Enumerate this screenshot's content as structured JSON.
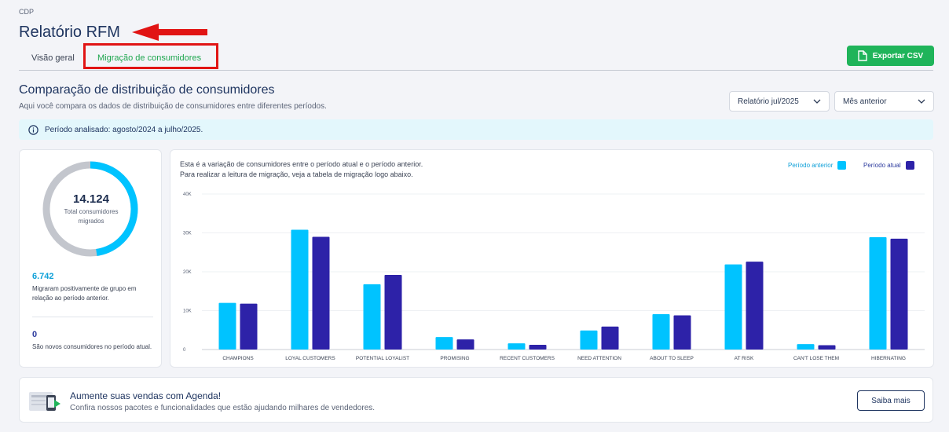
{
  "breadcrumb": "CDP",
  "page_title": "Relatório RFM",
  "tabs": [
    {
      "label": "Visão geral",
      "active": false
    },
    {
      "label": "Migração de consumidores",
      "active": true
    }
  ],
  "export_button": "Exportar CSV",
  "section": {
    "title": "Comparação de distribuição de consumidores",
    "subtitle": "Aqui você compara os dados de distribuição de consumidores entre diferentes períodos."
  },
  "filters": {
    "report": "Relatório jul/2025",
    "period": "Mês anterior"
  },
  "info_banner": "Período analisado: agosto/2024 a julho/2025.",
  "summary": {
    "total_value": "14.124",
    "total_label": "Total consumidores migrados",
    "positive_fraction": 0.477,
    "positive_value": "6.742",
    "positive_label": "Migraram positivamente de grupo em relação ao período anterior.",
    "new_value": "0",
    "new_label": "São novos consumidores no período atual."
  },
  "chart_description": [
    "Esta é a variação de consumidores entre o período atual e o período anterior.",
    "Para realizar a leitura de migração, veja a tabela de migração logo abaixo."
  ],
  "colors": {
    "previous": "#00c3ff",
    "current": "#2d22a8",
    "accent_green": "#1fb45a",
    "donut_track": "#c3c6cd"
  },
  "chart_data": {
    "type": "bar",
    "categories": [
      "CHAMPIONS",
      "LOYAL CUSTOMERS",
      "POTENTIAL LOYALIST",
      "PROMISING",
      "RECENT CUSTOMERS",
      "NEED ATTENTION",
      "ABOUT TO SLEEP",
      "AT RISK",
      "CAN'T LOSE THEM",
      "HIBERNATING"
    ],
    "series": [
      {
        "name": "Período anterior",
        "values": [
          12000,
          30800,
          16800,
          3200,
          1600,
          4900,
          9100,
          21900,
          1400,
          28900
        ]
      },
      {
        "name": "Período atual",
        "values": [
          11800,
          29000,
          19200,
          2600,
          1200,
          5900,
          8800,
          22600,
          1100,
          28500
        ]
      }
    ],
    "ylim": [
      0,
      40000
    ],
    "yticks": [
      0,
      10000,
      20000,
      30000,
      40000
    ],
    "ytick_labels": [
      "0",
      "10K",
      "20K",
      "30K",
      "40K"
    ],
    "legend_position": "top-right",
    "grid": true
  },
  "promo": {
    "title": "Aumente suas vendas com Agenda!",
    "subtitle": "Confira nossos pacotes e funcionalidades que estão ajudando milhares de vendedores.",
    "button": "Saiba mais"
  }
}
